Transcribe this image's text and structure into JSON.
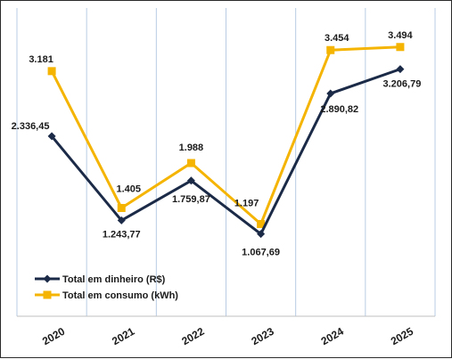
{
  "chart_data": {
    "type": "line",
    "categories": [
      "2020",
      "2021",
      "2022",
      "2023",
      "2024",
      "2025"
    ],
    "series": [
      {
        "name": "Total em dinheiro (R$)",
        "values": [
          2336.45,
          1243.77,
          1759.87,
          1067.69,
          2890.82,
          3206.79
        ],
        "labels": [
          "2.336,45",
          "1.243,77",
          "1.759,87",
          "1.067,69",
          "2.890,82",
          "3.206,79"
        ],
        "color": "#1b2a47",
        "marker": "diamond"
      },
      {
        "name": "Total em consumo (kWh)",
        "values": [
          3181,
          1405,
          1988,
          1197,
          3454,
          3494
        ],
        "labels": [
          "3.181",
          "1.405",
          "1.988",
          "1.197",
          "3.454",
          "3.494"
        ],
        "color": "#f4b400",
        "marker": "square"
      }
    ],
    "ylim": [
      0,
      4000
    ],
    "grid": "vertical",
    "legend_position": "lower-left"
  }
}
